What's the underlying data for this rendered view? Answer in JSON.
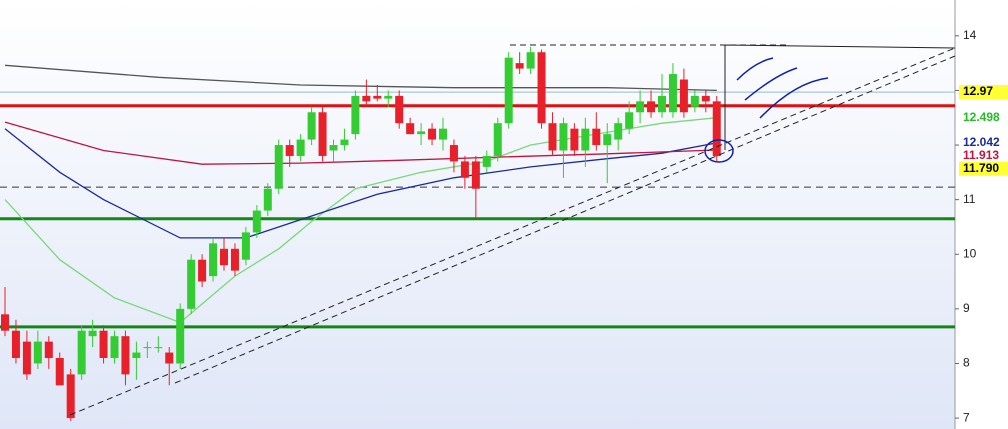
{
  "chart_data": {
    "type": "candlestick",
    "ylim": [
      6.8,
      14.7
    ],
    "yticks": [
      7,
      8,
      9,
      10,
      11,
      12,
      13,
      14
    ],
    "up_color": "#33cc33",
    "down_color": "#e8202a",
    "open": [
      8.9,
      8.6,
      8.4,
      8.0,
      8.4,
      8.1,
      7.8,
      7.8,
      8.5,
      8.6,
      8.1,
      8.5,
      8.1,
      8.3,
      8.3,
      8.2,
      8.0,
      9.0,
      9.9,
      9.6,
      10.1,
      10.1,
      9.9,
      10.4,
      10.8,
      11.2,
      12.0,
      11.8,
      12.1,
      12.6,
      11.9,
      12.0,
      12.2,
      12.9,
      12.9,
      12.85,
      12.9,
      12.4,
      12.2,
      12.3,
      12.1,
      12.0,
      11.7,
      11.7,
      11.6,
      11.8,
      12.4,
      13.5,
      13.4,
      13.7,
      12.4,
      11.9,
      12.3,
      11.9,
      12.3,
      12.0,
      12.1,
      12.3,
      12.6,
      12.8,
      12.6,
      12.6,
      13.2,
      12.7,
      12.9,
      12.8
    ],
    "high": [
      9.4,
      8.8,
      8.6,
      8.6,
      8.5,
      8.2,
      7.9,
      8.7,
      8.8,
      8.7,
      8.6,
      8.6,
      8.4,
      8.4,
      8.5,
      8.3,
      9.1,
      10.0,
      10.0,
      10.3,
      10.3,
      10.2,
      10.5,
      10.9,
      11.3,
      12.1,
      12.1,
      12.2,
      12.7,
      12.7,
      12.1,
      12.3,
      13.0,
      13.2,
      13.1,
      13.0,
      13.0,
      12.5,
      12.4,
      12.4,
      12.5,
      12.1,
      11.8,
      11.8,
      11.9,
      12.5,
      13.7,
      13.7,
      13.8,
      13.75,
      12.6,
      12.5,
      12.4,
      12.5,
      12.6,
      12.4,
      12.5,
      12.8,
      13.0,
      13.0,
      13.3,
      13.5,
      13.4,
      13.0,
      13.0,
      12.9
    ],
    "low": [
      8.5,
      8.0,
      7.7,
      7.9,
      7.9,
      7.6,
      6.95,
      7.7,
      8.3,
      8.0,
      8.0,
      7.6,
      7.7,
      8.1,
      8.2,
      7.6,
      7.9,
      8.9,
      9.4,
      9.5,
      9.7,
      9.6,
      9.8,
      10.3,
      10.7,
      11.1,
      11.6,
      11.7,
      12.0,
      11.7,
      11.7,
      11.9,
      12.1,
      12.7,
      12.8,
      12.7,
      12.3,
      12.2,
      12.0,
      12.0,
      11.9,
      11.5,
      11.2,
      10.65,
      11.5,
      11.7,
      12.3,
      13.3,
      13.3,
      12.3,
      11.8,
      11.4,
      11.8,
      11.6,
      11.9,
      11.3,
      11.9,
      12.2,
      12.4,
      12.5,
      12.5,
      12.5,
      12.5,
      12.6,
      12.6,
      11.7
    ],
    "close": [
      8.6,
      8.1,
      7.8,
      8.4,
      8.1,
      7.6,
      7.0,
      8.6,
      8.6,
      8.1,
      8.5,
      7.8,
      8.2,
      8.3,
      8.3,
      8.0,
      9.0,
      9.9,
      9.5,
      10.2,
      9.8,
      9.7,
      10.4,
      10.8,
      11.2,
      12.0,
      11.8,
      12.1,
      12.6,
      11.8,
      12.0,
      12.1,
      12.9,
      12.8,
      12.85,
      12.9,
      12.4,
      12.2,
      12.25,
      12.1,
      12.3,
      11.7,
      11.4,
      11.2,
      11.8,
      12.4,
      13.6,
      13.4,
      13.7,
      12.4,
      11.9,
      12.4,
      11.9,
      12.3,
      12.0,
      12.2,
      12.4,
      12.6,
      12.8,
      12.6,
      12.9,
      13.3,
      12.6,
      12.9,
      12.8,
      11.8
    ],
    "overlays": [
      {
        "color": "#7ad87a",
        "x": [
          0,
          5,
          10,
          16,
          21,
          25,
          28,
          32,
          38,
          44,
          48,
          54,
          60,
          65
        ],
        "values": [
          11.0,
          9.9,
          9.2,
          8.75,
          9.6,
          10.1,
          10.6,
          11.2,
          11.5,
          11.7,
          12.0,
          12.2,
          12.4,
          12.5
        ]
      },
      {
        "color": "#1c2a9c",
        "x": [
          0,
          5,
          9,
          16,
          22,
          28,
          34,
          41,
          48,
          55,
          60,
          65
        ],
        "values": [
          12.3,
          11.5,
          11.0,
          10.3,
          10.3,
          10.7,
          11.1,
          11.4,
          11.6,
          11.75,
          11.85,
          12.04
        ]
      },
      {
        "color": "#c0143c",
        "x": [
          0,
          9,
          18,
          27,
          36,
          45,
          55,
          65
        ],
        "values": [
          12.42,
          11.9,
          11.65,
          11.67,
          11.72,
          11.78,
          11.84,
          11.91
        ]
      },
      {
        "color": "#555555",
        "x": [
          0,
          14,
          27,
          41,
          55,
          65
        ],
        "values": [
          13.46,
          13.24,
          13.1,
          13.05,
          13.05,
          13.0
        ]
      }
    ],
    "levels": [
      {
        "value": 12.72,
        "color": "#dd1111",
        "width": 3
      },
      {
        "value": 10.65,
        "color": "#118811",
        "width": 3
      },
      {
        "value": 8.67,
        "color": "#118811",
        "width": 3
      },
      {
        "value": 11.23,
        "color": "#333333",
        "width": 1,
        "dashed": true
      },
      {
        "value": 12.97,
        "color": "#99bbcc",
        "width": 1
      }
    ],
    "price_labels": [
      {
        "value": 12.97,
        "label": "12.97",
        "color": "#000000",
        "background": "#ffff33"
      },
      {
        "value": 12.498,
        "label": "12.498",
        "color": "#22bb22",
        "background": "#ffffff"
      },
      {
        "value": 12.042,
        "label": "12.042",
        "color": "#1c2a9c",
        "background": "#ffffff"
      },
      {
        "value": 11.913,
        "label": "11.913",
        "color": "#c0143c",
        "background": "#ffffff"
      },
      {
        "value": 11.79,
        "label": "11.790",
        "color": "#000000",
        "background": "#ffff33"
      }
    ]
  }
}
